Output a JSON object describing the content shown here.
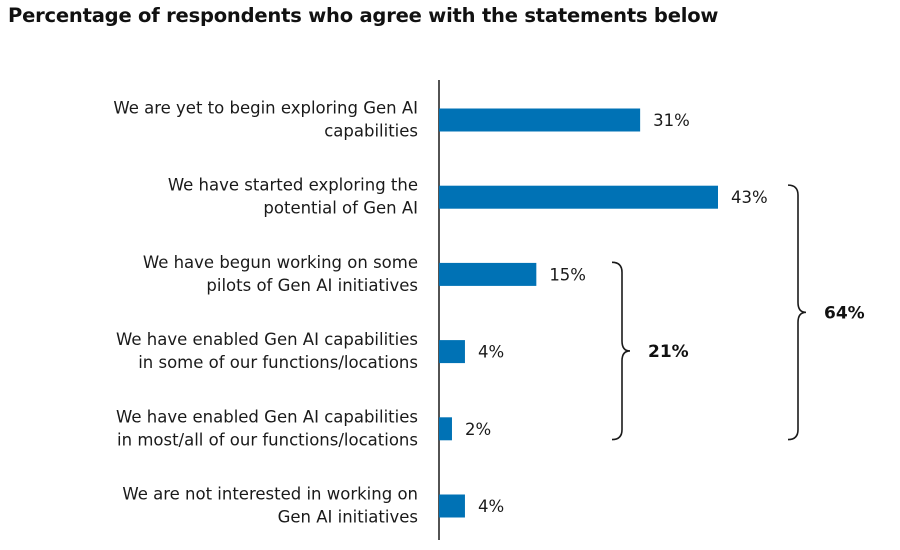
{
  "title": "Percentage of respondents who agree with the statements below",
  "chart_data": {
    "type": "bar",
    "orientation": "horizontal",
    "title": "Percentage of respondents who agree with the statements below",
    "categories": [
      [
        "We are yet to begin exploring Gen AI",
        "capabilities"
      ],
      [
        "We have started exploring the",
        "potential of Gen AI"
      ],
      [
        "We have begun working on some",
        "pilots of Gen AI initiatives"
      ],
      [
        "We have enabled Gen AI capabilities",
        "in some of our functions/locations"
      ],
      [
        "We have enabled Gen AI capabilities",
        "in most/all of our functions/locations"
      ],
      [
        "We are not interested in working on",
        "Gen AI initiatives"
      ]
    ],
    "values": [
      31,
      43,
      15,
      4,
      2,
      4
    ],
    "value_labels": [
      "31%",
      "43%",
      "15%",
      "4%",
      "2%",
      "4%"
    ],
    "xlim": [
      0,
      43
    ],
    "bar_color": "#0072B5",
    "grid": false,
    "groups": [
      {
        "label": "21%",
        "from": 2,
        "to": 4
      },
      {
        "label": "64%",
        "from": 1,
        "to": 4
      }
    ]
  }
}
